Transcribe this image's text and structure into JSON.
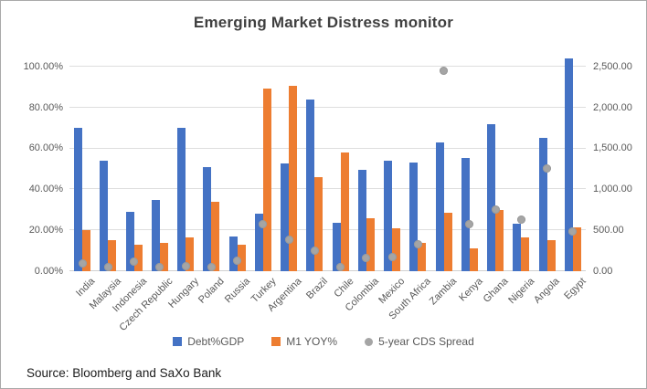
{
  "title": "Emerging Market Distress monitor",
  "source": "Source: Bloomberg and SaXo Bank",
  "colors": {
    "debt_bar": "#4472c4",
    "m1_bar": "#ed7d31",
    "cds_dot": "#a5a5a5",
    "gridline": "#dedede",
    "axis_text": "#595959",
    "title_text": "#3f3f3f"
  },
  "legend": [
    {
      "label": "Debt%GDP",
      "marker": "square",
      "color": "#4472c4"
    },
    {
      "label": "M1 YOY%",
      "marker": "square",
      "color": "#ed7d31"
    },
    {
      "label": "5-year CDS Spread",
      "marker": "circle",
      "color": "#a5a5a5"
    }
  ],
  "chart_data": {
    "type": "bar",
    "title": "Emerging Market Distress monitor",
    "categories": [
      "India",
      "Malaysia",
      "Indonesia",
      "Czech Republic",
      "Hungary",
      "Poland",
      "Russia",
      "Turkey",
      "Argentina",
      "Brazil",
      "Chile",
      "Colombia",
      "Mexico",
      "South Africa",
      "Zambia",
      "Kenya",
      "Ghana",
      "Nigeria",
      "Angola",
      "Egypt"
    ],
    "series": [
      {
        "name": "Debt%GDP",
        "type": "bar",
        "axis": "left",
        "color": "#4472c4",
        "values": [
          70,
          54,
          29,
          35,
          70,
          51,
          17,
          28,
          52.5,
          84,
          23.5,
          49.5,
          54,
          53,
          63,
          55.5,
          72,
          23,
          65,
          104
        ]
      },
      {
        "name": "M1 YOY%",
        "type": "bar",
        "axis": "left",
        "color": "#ed7d31",
        "values": [
          20,
          15,
          13,
          14,
          16.5,
          34,
          13,
          89,
          90.5,
          46,
          58,
          26,
          21,
          14,
          28.5,
          11,
          30,
          16.5,
          15,
          21.5
        ]
      },
      {
        "name": "5-year CDS Spread",
        "type": "scatter",
        "axis": "right",
        "color": "#a5a5a5",
        "values": [
          95,
          50,
          120,
          50,
          60,
          55,
          125,
          575,
          385,
          255,
          55,
          160,
          175,
          325,
          2450,
          575,
          750,
          625,
          1255,
          490
        ]
      }
    ],
    "left_axis": {
      "tick_labels": [
        "0.00%",
        "20.00%",
        "40.00%",
        "60.00%",
        "80.00%",
        "100.00%"
      ],
      "tick_values": [
        0,
        20,
        40,
        60,
        80,
        100
      ],
      "min": 0,
      "max": 100
    },
    "right_axis": {
      "tick_labels": [
        "0.00",
        "500.00",
        "1,000.00",
        "1,500.00",
        "2,000.00",
        "2,500.00"
      ],
      "tick_values": [
        0,
        500,
        1000,
        1500,
        2000,
        2500
      ],
      "min": 0,
      "max": 2500
    },
    "legend_position": "bottom",
    "grid": true
  }
}
